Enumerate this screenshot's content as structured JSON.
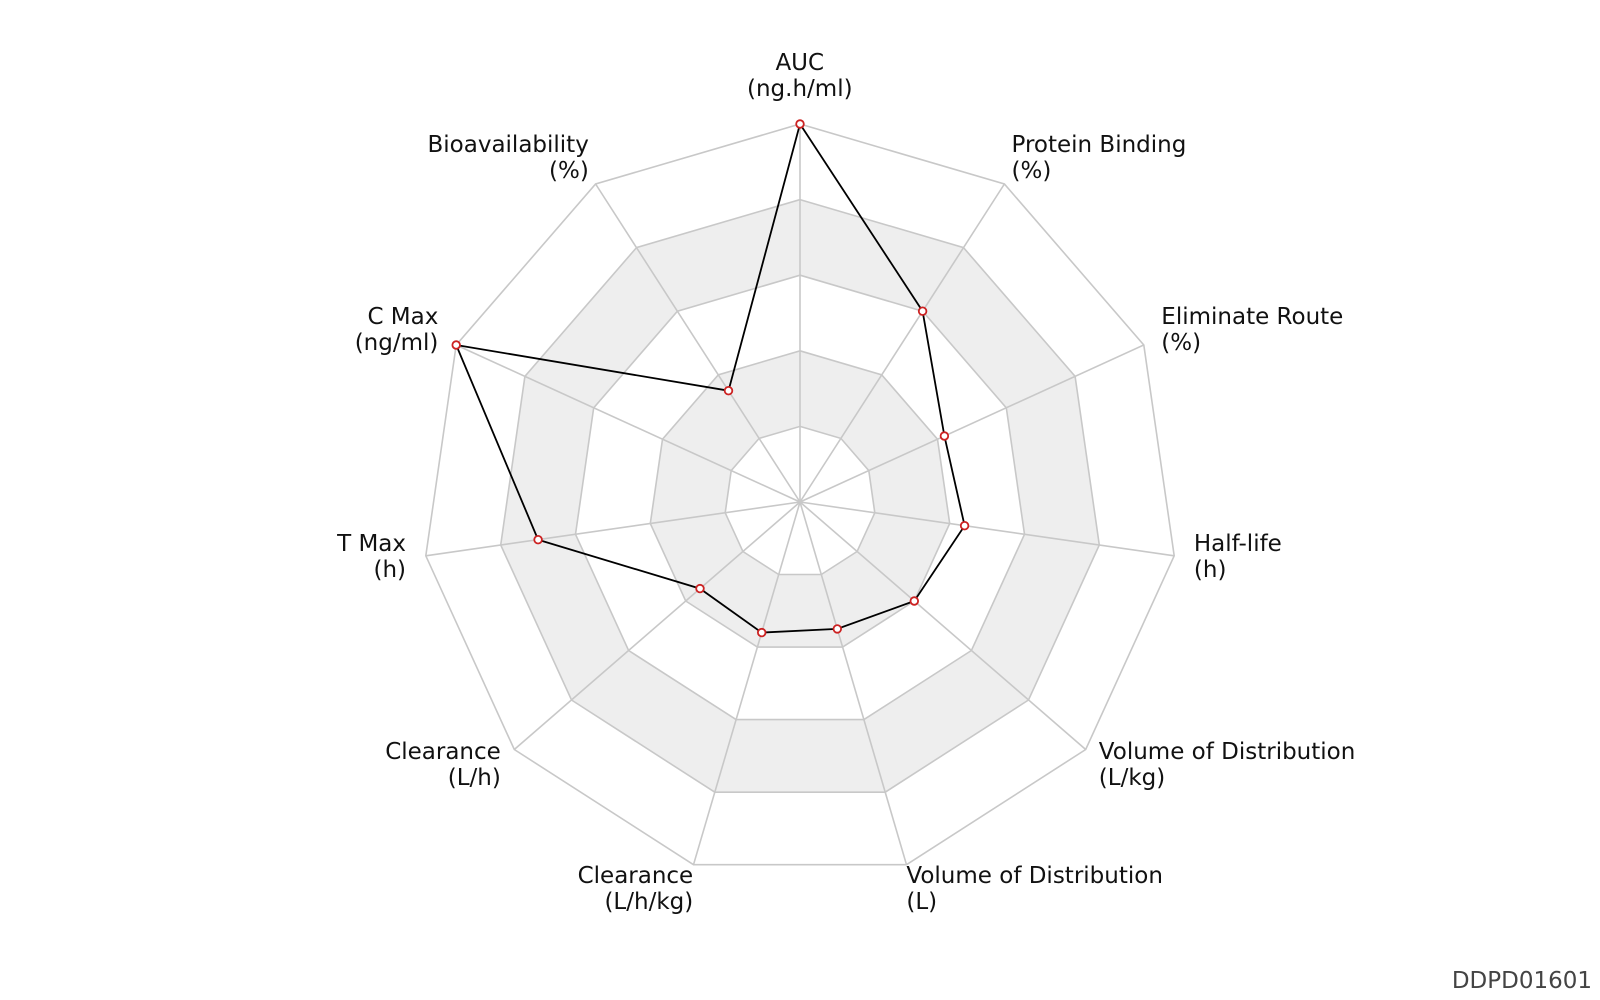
{
  "chart_data": {
    "type": "radar",
    "title": "",
    "axes": [
      {
        "name": "AUC",
        "unit": "(ng.h/ml)"
      },
      {
        "name": "Protein Binding",
        "unit": "(%)"
      },
      {
        "name": "Eliminate Route",
        "unit": "(%)"
      },
      {
        "name": "Half-life",
        "unit": "(h)"
      },
      {
        "name": "Volume of Distribution",
        "unit": "(L/kg)"
      },
      {
        "name": "Volume of Distribution",
        "unit": "(L)"
      },
      {
        "name": "Clearance",
        "unit": "(L/h/kg)"
      },
      {
        "name": "Clearance",
        "unit": "(L/h)"
      },
      {
        "name": "T Max",
        "unit": "(h)"
      },
      {
        "name": "C Max",
        "unit": "(ng/ml)"
      },
      {
        "name": "Bioavailability",
        "unit": "(%)"
      }
    ],
    "range": [
      0,
      1
    ],
    "rings": 5,
    "shaded_rings": [
      2,
      4
    ],
    "series": [
      {
        "values": [
          1.0,
          0.6,
          0.42,
          0.44,
          0.4,
          0.35,
          0.36,
          0.35,
          0.7,
          1.0,
          0.35
        ]
      }
    ],
    "line_color": "#000000",
    "marker_color": "#cc2222",
    "grid_color": "#c8c8c8",
    "band_color": "#eeeeee"
  },
  "chart_id": "DDPD01601"
}
